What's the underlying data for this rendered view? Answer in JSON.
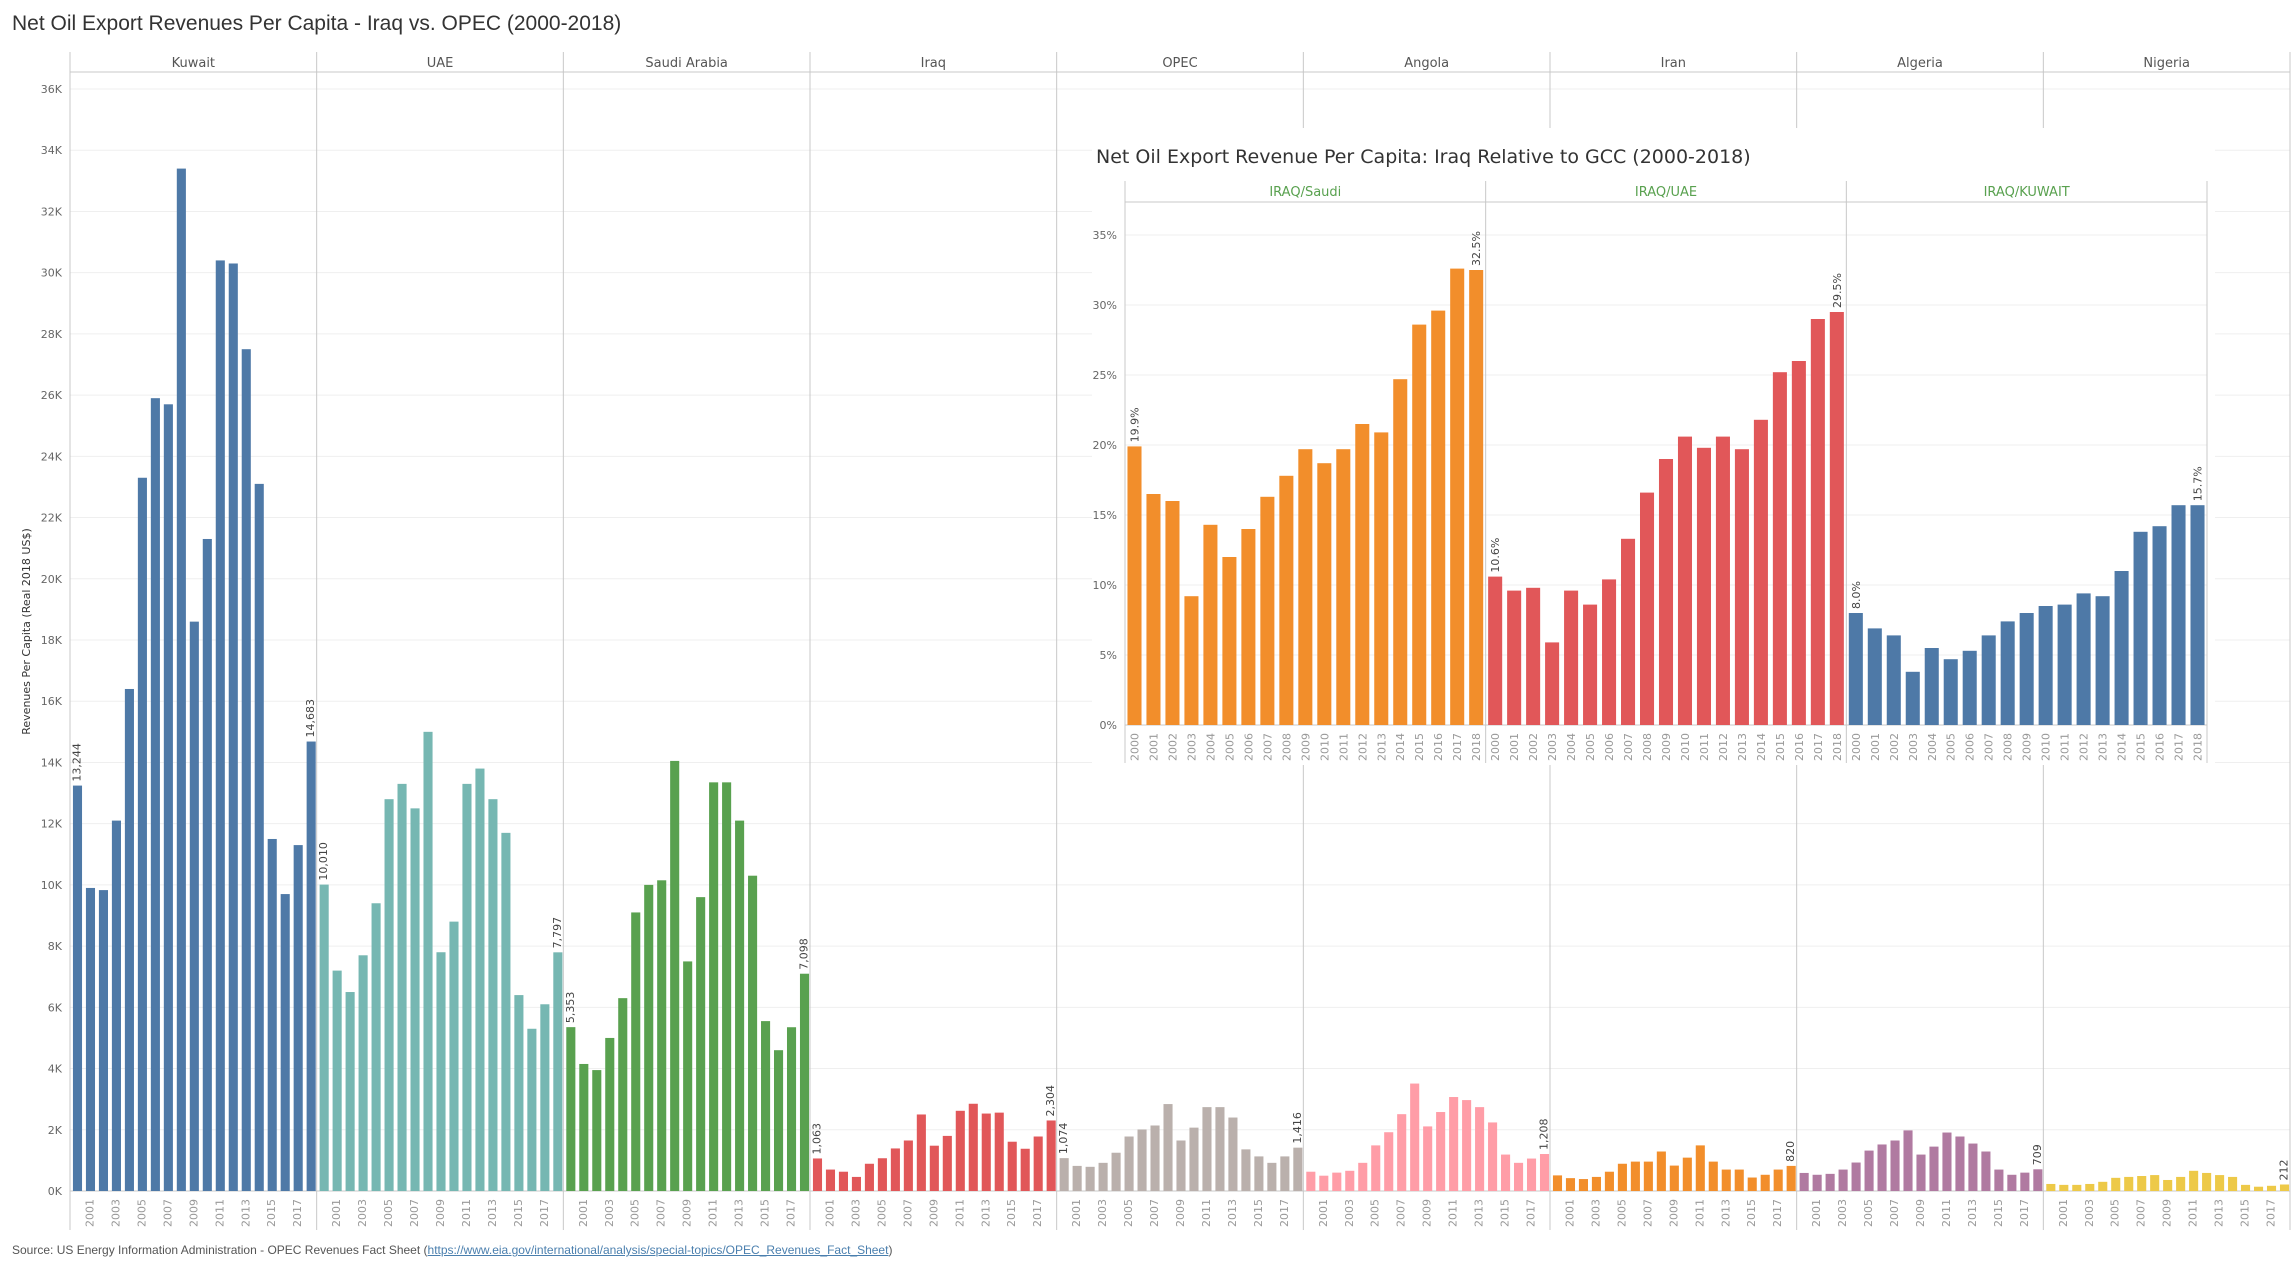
{
  "title": "Net Oil Export Revenues Per Capita - Iraq vs. OPEC (2000-2018)",
  "footer": {
    "prefix": "Source: US Energy Information Administration - OPEC Revenues Fact Sheet (",
    "link": "https://www.eia.gov/international/analysis/special-topics/OPEC_Revenues_Fact_Sheet",
    "suffix": ")"
  },
  "chart_data": [
    {
      "type": "bar",
      "title": "Net Oil Export Revenues Per Capita - Iraq vs. OPEC (2000-2018)",
      "xlabel": "",
      "ylabel": "Revenues Per Capita (Real 2018 US$)",
      "ylim": [
        0,
        36600
      ],
      "yticks": [
        0,
        2000,
        4000,
        6000,
        8000,
        10000,
        12000,
        14000,
        16000,
        18000,
        20000,
        22000,
        24000,
        26000,
        28000,
        30000,
        32000,
        34000,
        36000
      ],
      "ytick_labels": [
        "0K",
        "2K",
        "4K",
        "6K",
        "8K",
        "10K",
        "12K",
        "14K",
        "16K",
        "18K",
        "20K",
        "22K",
        "24K",
        "26K",
        "28K",
        "30K",
        "32K",
        "34K",
        "36K"
      ],
      "grid": true,
      "categories": [
        2000,
        2001,
        2002,
        2003,
        2004,
        2005,
        2006,
        2007,
        2008,
        2009,
        2010,
        2011,
        2012,
        2013,
        2014,
        2015,
        2016,
        2017,
        2018
      ],
      "xtick_labels": [
        "2001",
        "2003",
        "2005",
        "2007",
        "2009",
        "2011",
        "2013",
        "2015",
        "2017"
      ],
      "series": [
        {
          "name": "Kuwait",
          "color": "#4e79a7",
          "labels": {
            "first": "13,244",
            "last": "14,683"
          },
          "values": [
            13244,
            9900,
            9830,
            12100,
            16400,
            23300,
            25900,
            25700,
            33400,
            18600,
            21300,
            30400,
            30300,
            27500,
            23100,
            11500,
            9700,
            11300,
            14683
          ]
        },
        {
          "name": "UAE",
          "color": "#76b7b2",
          "labels": {
            "first": "10,010",
            "last": "7,797"
          },
          "values": [
            10010,
            7200,
            6500,
            7700,
            9400,
            12800,
            13300,
            12500,
            15000,
            7800,
            8800,
            13300,
            13800,
            12800,
            11700,
            6400,
            5300,
            6100,
            7797
          ]
        },
        {
          "name": "Saudi Arabia",
          "color": "#59a14f",
          "labels": {
            "first": "5,353",
            "last": "7,098"
          },
          "values": [
            5353,
            4150,
            3950,
            5000,
            6300,
            9100,
            10000,
            10150,
            14050,
            7500,
            9600,
            13350,
            13350,
            12100,
            10300,
            5550,
            4600,
            5350,
            7098
          ]
        },
        {
          "name": "Iraq",
          "color": "#e15759",
          "labels": {
            "first": "1,063",
            "last": "2,304"
          },
          "values": [
            1063,
            700,
            630,
            460,
            890,
            1070,
            1390,
            1650,
            2500,
            1480,
            1800,
            2620,
            2850,
            2530,
            2560,
            1610,
            1380,
            1780,
            2304
          ]
        },
        {
          "name": "OPEC",
          "color": "#bab0ac",
          "labels": {
            "first": "1,074",
            "last": "1,416"
          },
          "values": [
            1074,
            820,
            790,
            920,
            1250,
            1780,
            2010,
            2140,
            2840,
            1650,
            2070,
            2740,
            2740,
            2400,
            1360,
            1130,
            920,
            1130,
            1416
          ]
        },
        {
          "name": "Angola",
          "color": "#ff9da7",
          "labels": {
            "first": "",
            "last": "1,208"
          },
          "values": [
            630,
            500,
            600,
            660,
            920,
            1490,
            1920,
            2510,
            3510,
            2110,
            2580,
            3070,
            2970,
            2740,
            2240,
            1190,
            920,
            1060,
            1208
          ]
        },
        {
          "name": "Iran",
          "color": "#f28e2b",
          "labels": {
            "first": "",
            "last": "820"
          },
          "values": [
            510,
            420,
            390,
            460,
            630,
            890,
            960,
            960,
            1290,
            830,
            1090,
            1490,
            960,
            700,
            700,
            440,
            530,
            700,
            820
          ]
        },
        {
          "name": "Algeria",
          "color": "#b07aa1",
          "labels": {
            "first": "",
            "last": "709"
          },
          "values": [
            590,
            530,
            560,
            700,
            930,
            1320,
            1520,
            1650,
            1980,
            1190,
            1450,
            1910,
            1780,
            1550,
            1290,
            700,
            530,
            600,
            709
          ]
        },
        {
          "name": "Nigeria",
          "color": "#edc948",
          "labels": {
            "first": "",
            "last": "212"
          },
          "values": [
            230,
            200,
            200,
            230,
            300,
            430,
            460,
            490,
            520,
            360,
            460,
            660,
            590,
            520,
            460,
            200,
            140,
            170,
            212
          ]
        }
      ]
    },
    {
      "type": "bar",
      "title": "Net Oil Export Revenue Per Capita: Iraq Relative to GCC (2000-2018)",
      "xlabel": "",
      "ylabel": "",
      "ylim": [
        0,
        37.5
      ],
      "yticks": [
        0,
        5,
        10,
        15,
        20,
        25,
        30,
        35
      ],
      "ytick_labels": [
        "0%",
        "5%",
        "10%",
        "15%",
        "20%",
        "25%",
        "30%",
        "35%"
      ],
      "grid": true,
      "categories": [
        2000,
        2001,
        2002,
        2003,
        2004,
        2005,
        2006,
        2007,
        2008,
        2009,
        2010,
        2011,
        2012,
        2013,
        2014,
        2015,
        2016,
        2017,
        2018
      ],
      "xtick_labels": [
        "2000",
        "2001",
        "2002",
        "2003",
        "2004",
        "2005",
        "2006",
        "2007",
        "2008",
        "2009",
        "2010",
        "2011",
        "2012",
        "2013",
        "2014",
        "2015",
        "2016",
        "2017",
        "2018"
      ],
      "header_color": "#59a14f",
      "series": [
        {
          "name": "IRAQ/Saudi",
          "color": "#f28e2b",
          "labels": {
            "first": "19.9%",
            "last": "32.5%"
          },
          "values": [
            19.9,
            16.5,
            16.0,
            9.2,
            14.3,
            12.0,
            14.0,
            16.3,
            17.8,
            19.7,
            18.7,
            19.7,
            21.5,
            20.9,
            24.7,
            28.6,
            29.6,
            32.6,
            32.5
          ]
        },
        {
          "name": "IRAQ/UAE",
          "color": "#e15759",
          "labels": {
            "first": "10.6%",
            "last": "29.5%"
          },
          "values": [
            10.6,
            9.6,
            9.8,
            5.9,
            9.6,
            8.6,
            10.4,
            13.3,
            16.6,
            19.0,
            20.6,
            19.8,
            20.6,
            19.7,
            21.8,
            25.2,
            26.0,
            29.0,
            29.5
          ]
        },
        {
          "name": "IRAQ/KUWAIT",
          "color": "#4e79a7",
          "labels": {
            "first": "8.0%",
            "last": "15.7%"
          },
          "values": [
            8.0,
            6.9,
            6.4,
            3.8,
            5.5,
            4.7,
            5.3,
            6.4,
            7.4,
            8.0,
            8.5,
            8.6,
            9.4,
            9.2,
            11.0,
            13.8,
            14.2,
            15.7,
            15.7
          ]
        }
      ]
    }
  ]
}
